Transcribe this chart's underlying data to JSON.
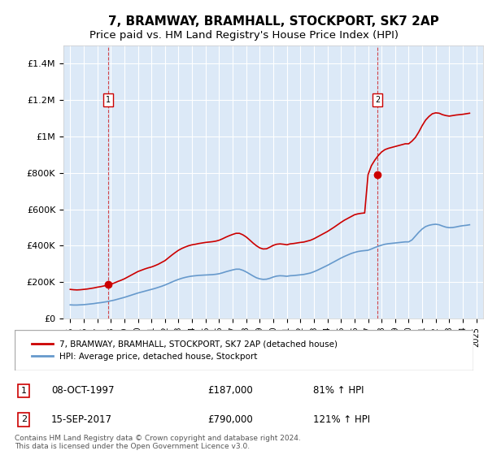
{
  "title": "7, BRAMWAY, BRAMHALL, STOCKPORT, SK7 2AP",
  "subtitle": "Price paid vs. HM Land Registry's House Price Index (HPI)",
  "title_fontsize": 11,
  "subtitle_fontsize": 9.5,
  "background_color": "#dce9f7",
  "plot_bg_color": "#dce9f7",
  "red_line_color": "#cc0000",
  "blue_line_color": "#6699cc",
  "marker1_date": 1997.78,
  "marker1_value": 187000,
  "marker2_date": 2017.71,
  "marker2_value": 790000,
  "ylim": [
    0,
    1500000
  ],
  "xlim_left": 1994.5,
  "xlim_right": 2025.5,
  "yticks": [
    0,
    200000,
    400000,
    600000,
    800000,
    1000000,
    1200000,
    1400000
  ],
  "ytick_labels": [
    "£0",
    "£200K",
    "£400K",
    "£600K",
    "£800K",
    "£1M",
    "£1.2M",
    "£1.4M"
  ],
  "xticks": [
    1995,
    1996,
    1997,
    1998,
    1999,
    2000,
    2001,
    2002,
    2003,
    2004,
    2005,
    2006,
    2007,
    2008,
    2009,
    2010,
    2011,
    2012,
    2013,
    2014,
    2015,
    2016,
    2017,
    2018,
    2019,
    2020,
    2021,
    2022,
    2023,
    2024,
    2025
  ],
  "legend_line1": "7, BRAMWAY, BRAMHALL, STOCKPORT, SK7 2AP (detached house)",
  "legend_line2": "HPI: Average price, detached house, Stockport",
  "annot1_num": "1",
  "annot1_date": "08-OCT-1997",
  "annot1_price": "£187,000",
  "annot1_hpi": "81% ↑ HPI",
  "annot2_num": "2",
  "annot2_date": "15-SEP-2017",
  "annot2_price": "£790,000",
  "annot2_hpi": "121% ↑ HPI",
  "footnote": "Contains HM Land Registry data © Crown copyright and database right 2024.\nThis data is licensed under the Open Government Licence v3.0.",
  "red_hpi_years": [
    1995.0,
    1995.25,
    1995.5,
    1995.75,
    1996.0,
    1996.25,
    1996.5,
    1996.75,
    1997.0,
    1997.25,
    1997.5,
    1997.75,
    1998.0,
    1998.25,
    1998.5,
    1998.75,
    1999.0,
    1999.25,
    1999.5,
    1999.75,
    2000.0,
    2000.25,
    2000.5,
    2000.75,
    2001.0,
    2001.25,
    2001.5,
    2001.75,
    2002.0,
    2002.25,
    2002.5,
    2002.75,
    2003.0,
    2003.25,
    2003.5,
    2003.75,
    2004.0,
    2004.25,
    2004.5,
    2004.75,
    2005.0,
    2005.25,
    2005.5,
    2005.75,
    2006.0,
    2006.25,
    2006.5,
    2006.75,
    2007.0,
    2007.25,
    2007.5,
    2007.75,
    2008.0,
    2008.25,
    2008.5,
    2008.75,
    2009.0,
    2009.25,
    2009.5,
    2009.75,
    2010.0,
    2010.25,
    2010.5,
    2010.75,
    2011.0,
    2011.25,
    2011.5,
    2011.75,
    2012.0,
    2012.25,
    2012.5,
    2012.75,
    2013.0,
    2013.25,
    2013.5,
    2013.75,
    2014.0,
    2014.25,
    2014.5,
    2014.75,
    2015.0,
    2015.25,
    2015.5,
    2015.75,
    2016.0,
    2016.25,
    2016.5,
    2016.75,
    2017.0,
    2017.25,
    2017.5,
    2017.75,
    2018.0,
    2018.25,
    2018.5,
    2018.75,
    2019.0,
    2019.25,
    2019.5,
    2019.75,
    2020.0,
    2020.25,
    2020.5,
    2020.75,
    2021.0,
    2021.25,
    2021.5,
    2021.75,
    2022.0,
    2022.25,
    2022.5,
    2022.75,
    2023.0,
    2023.25,
    2023.5,
    2023.75,
    2024.0,
    2024.25,
    2024.5
  ],
  "red_hpi_values": [
    160000,
    158000,
    157000,
    158000,
    160000,
    162000,
    165000,
    168000,
    172000,
    175000,
    179000,
    183000,
    188000,
    195000,
    203000,
    210000,
    218000,
    228000,
    238000,
    248000,
    258000,
    265000,
    272000,
    278000,
    283000,
    290000,
    298000,
    308000,
    318000,
    333000,
    348000,
    362000,
    375000,
    385000,
    393000,
    400000,
    405000,
    408000,
    412000,
    415000,
    418000,
    420000,
    422000,
    425000,
    430000,
    438000,
    447000,
    455000,
    462000,
    468000,
    468000,
    460000,
    448000,
    432000,
    415000,
    400000,
    388000,
    382000,
    383000,
    392000,
    402000,
    408000,
    410000,
    408000,
    405000,
    410000,
    412000,
    415000,
    418000,
    420000,
    425000,
    430000,
    438000,
    448000,
    458000,
    468000,
    478000,
    490000,
    502000,
    515000,
    528000,
    540000,
    550000,
    560000,
    570000,
    575000,
    578000,
    580000,
    790000,
    840000,
    870000,
    895000,
    915000,
    928000,
    935000,
    940000,
    945000,
    950000,
    955000,
    960000,
    960000,
    975000,
    995000,
    1025000,
    1060000,
    1090000,
    1110000,
    1125000,
    1130000,
    1128000,
    1120000,
    1115000,
    1112000,
    1115000,
    1118000,
    1120000,
    1122000,
    1125000,
    1128000
  ],
  "blue_hpi_years": [
    1995.0,
    1995.25,
    1995.5,
    1995.75,
    1996.0,
    1996.25,
    1996.5,
    1996.75,
    1997.0,
    1997.25,
    1997.5,
    1997.75,
    1998.0,
    1998.25,
    1998.5,
    1998.75,
    1999.0,
    1999.25,
    1999.5,
    1999.75,
    2000.0,
    2000.25,
    2000.5,
    2000.75,
    2001.0,
    2001.25,
    2001.5,
    2001.75,
    2002.0,
    2002.25,
    2002.5,
    2002.75,
    2003.0,
    2003.25,
    2003.5,
    2003.75,
    2004.0,
    2004.25,
    2004.5,
    2004.75,
    2005.0,
    2005.25,
    2005.5,
    2005.75,
    2006.0,
    2006.25,
    2006.5,
    2006.75,
    2007.0,
    2007.25,
    2007.5,
    2007.75,
    2008.0,
    2008.25,
    2008.5,
    2008.75,
    2009.0,
    2009.25,
    2009.5,
    2009.75,
    2010.0,
    2010.25,
    2010.5,
    2010.75,
    2011.0,
    2011.25,
    2011.5,
    2011.75,
    2012.0,
    2012.25,
    2012.5,
    2012.75,
    2013.0,
    2013.25,
    2013.5,
    2013.75,
    2014.0,
    2014.25,
    2014.5,
    2014.75,
    2015.0,
    2015.25,
    2015.5,
    2015.75,
    2016.0,
    2016.25,
    2016.5,
    2016.75,
    2017.0,
    2017.25,
    2017.5,
    2017.75,
    2018.0,
    2018.25,
    2018.5,
    2018.75,
    2019.0,
    2019.25,
    2019.5,
    2019.75,
    2020.0,
    2020.25,
    2020.5,
    2020.75,
    2021.0,
    2021.25,
    2021.5,
    2021.75,
    2022.0,
    2022.25,
    2022.5,
    2022.75,
    2023.0,
    2023.25,
    2023.5,
    2023.75,
    2024.0,
    2024.25,
    2024.5
  ],
  "blue_hpi_values": [
    75000,
    74000,
    74000,
    75000,
    76000,
    78000,
    80000,
    82000,
    85000,
    87000,
    90000,
    93000,
    97000,
    101000,
    106000,
    111000,
    116000,
    122000,
    128000,
    134000,
    140000,
    145000,
    150000,
    155000,
    160000,
    165000,
    171000,
    177000,
    184000,
    192000,
    200000,
    208000,
    215000,
    221000,
    226000,
    230000,
    233000,
    235000,
    237000,
    238000,
    239000,
    240000,
    241000,
    243000,
    246000,
    251000,
    257000,
    262000,
    267000,
    271000,
    271000,
    265000,
    256000,
    245000,
    234000,
    224000,
    218000,
    215000,
    216000,
    221000,
    228000,
    233000,
    235000,
    234000,
    232000,
    235000,
    236000,
    238000,
    240000,
    242000,
    246000,
    250000,
    257000,
    265000,
    274000,
    283000,
    292000,
    302000,
    312000,
    322000,
    332000,
    341000,
    349000,
    357000,
    363000,
    368000,
    371000,
    373000,
    375000,
    382000,
    390000,
    397000,
    403000,
    408000,
    411000,
    413000,
    415000,
    417000,
    419000,
    421000,
    421000,
    432000,
    453000,
    474000,
    492000,
    505000,
    512000,
    516000,
    518000,
    515000,
    508000,
    502000,
    499000,
    500000,
    503000,
    507000,
    510000,
    512000,
    515000
  ]
}
